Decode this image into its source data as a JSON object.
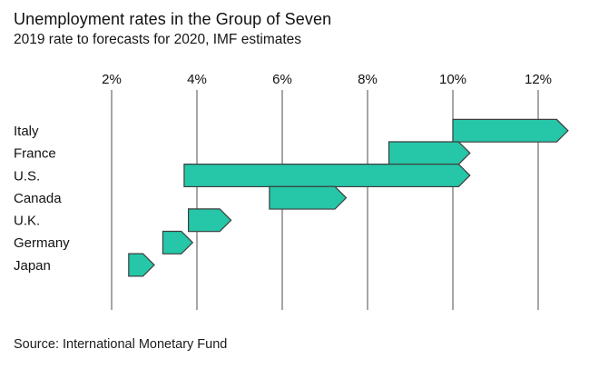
{
  "chart_data": {
    "type": "bar",
    "subtype": "horizontal-range-arrow",
    "title": "Unemployment rates in the Group of Seven",
    "subtitle": "2019 rate to forecasts for 2020, IMF estimates",
    "source": "Source: International Monetary Fund",
    "categories": [
      "Italy",
      "France",
      "U.S.",
      "Canada",
      "U.K.",
      "Germany",
      "Japan"
    ],
    "series": [
      {
        "name": "2019 rate",
        "values": [
          10.0,
          8.5,
          3.7,
          5.7,
          3.8,
          3.2,
          2.4
        ]
      },
      {
        "name": "2020 forecast",
        "values": [
          12.7,
          10.4,
          10.4,
          7.5,
          4.8,
          3.9,
          3.0
        ]
      }
    ],
    "x_ticks": [
      2,
      4,
      6,
      8,
      10,
      12
    ],
    "x_tick_labels": [
      "2%",
      "4%",
      "6%",
      "8%",
      "10%",
      "12%"
    ],
    "xlim": [
      0,
      13.3
    ],
    "grid": "vertical-gridlines",
    "legend": "none",
    "colors": {
      "bar_fill": "#26c6a8",
      "bar_outline": "#3d3d3d",
      "gridline": "#5e5e5e",
      "text": "#111111",
      "background": "#ffffff"
    }
  }
}
